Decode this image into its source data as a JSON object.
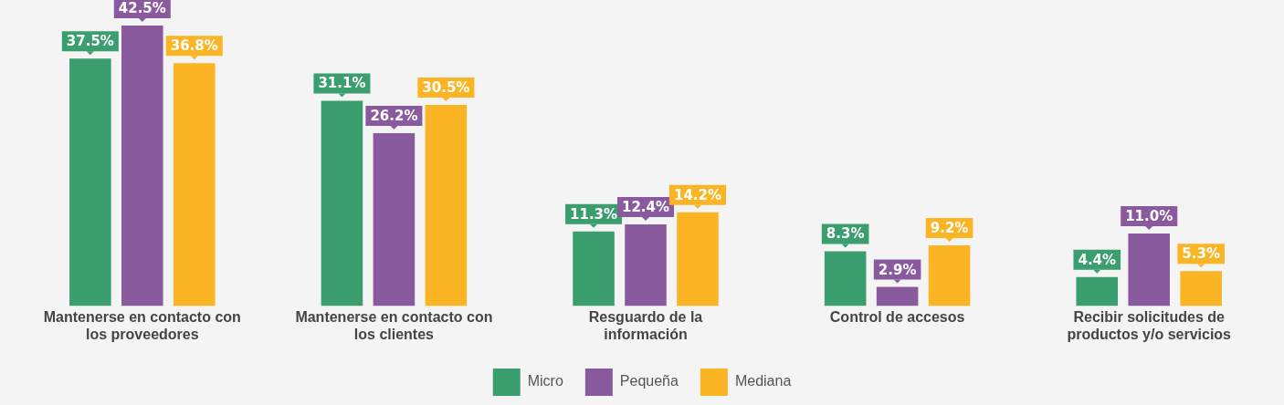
{
  "chart_data": {
    "type": "bar",
    "categories": [
      "Mantenerse en contacto con los proveedores",
      "Mantenerse en contacto con los clientes",
      "Resguardo de la información",
      "Control de accesos",
      "Recibir solicitudes de productos y/o servicios"
    ],
    "series": [
      {
        "name": "Micro",
        "color": "#3a9e6e",
        "values": [
          37.5,
          31.1,
          11.3,
          8.3,
          4.4
        ],
        "value_labels": [
          "37.5%",
          "31.1%",
          "11.3%",
          "8.3%",
          "4.4%"
        ]
      },
      {
        "name": "Pequeña",
        "color": "#8a5a9e",
        "values": [
          42.5,
          26.2,
          12.4,
          2.9,
          11.0
        ],
        "value_labels": [
          "42.5%",
          "26.2%",
          "12.4%",
          "2.9%",
          "11.0%"
        ]
      },
      {
        "name": "Mediana",
        "color": "#fbb424",
        "values": [
          36.8,
          30.5,
          14.2,
          9.2,
          5.3
        ],
        "value_labels": [
          "36.8%",
          "30.5%",
          "14.2%",
          "9.2%",
          "5.3%"
        ]
      }
    ],
    "tick_labels": "x",
    "grid": false,
    "legend": "bottom"
  }
}
